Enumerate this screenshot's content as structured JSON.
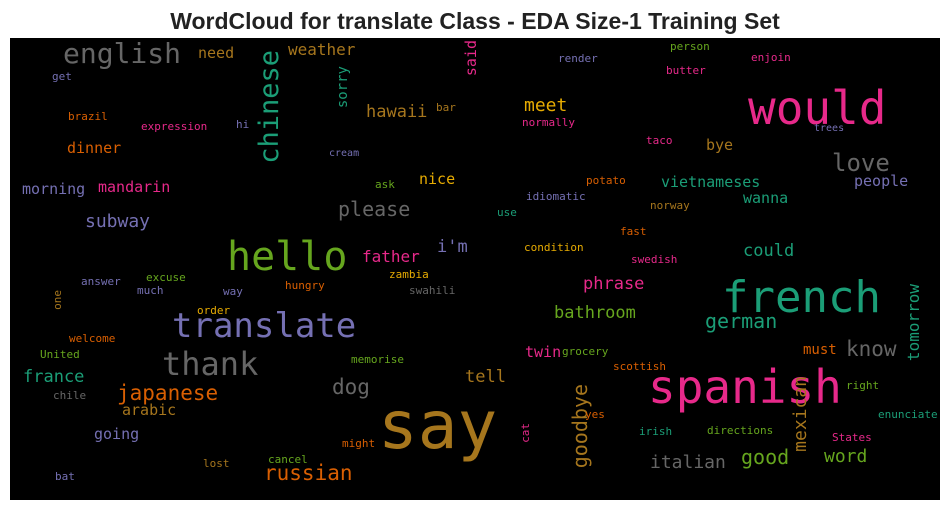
{
  "title": "WordCloud for translate Class - EDA Size-1 Training Set",
  "chart_data": {
    "type": "wordcloud",
    "title": "WordCloud for translate Class - EDA Size-1 Training Set",
    "background": "#000000",
    "colormap": "Dark2",
    "words": [
      {
        "text": "say",
        "color": "#a6761d"
      },
      {
        "text": "spanish",
        "color": "#e7298a"
      },
      {
        "text": "french",
        "color": "#1b9e77"
      },
      {
        "text": "would",
        "color": "#e7298a"
      },
      {
        "text": "hello",
        "color": "#66a61e"
      },
      {
        "text": "translate",
        "color": "#7570b3"
      },
      {
        "text": "thank",
        "color": "#666666"
      },
      {
        "text": "chinese",
        "color": "#1b9e77"
      },
      {
        "text": "english",
        "color": "#666666"
      },
      {
        "text": "russian",
        "color": "#d95f02"
      },
      {
        "text": "japanese",
        "color": "#d95f02"
      },
      {
        "text": "love",
        "color": "#666666"
      },
      {
        "text": "please",
        "color": "#666666"
      },
      {
        "text": "german",
        "color": "#1b9e77"
      },
      {
        "text": "know",
        "color": "#666666"
      },
      {
        "text": "dog",
        "color": "#666666"
      },
      {
        "text": "goodbye",
        "color": "#a6761d"
      },
      {
        "text": "good",
        "color": "#66a61e"
      },
      {
        "text": "italian",
        "color": "#666666"
      },
      {
        "text": "mexican",
        "color": "#a6761d"
      },
      {
        "text": "word",
        "color": "#66a61e"
      },
      {
        "text": "meet",
        "color": "#e6ab02"
      },
      {
        "text": "subway",
        "color": "#7570b3"
      },
      {
        "text": "france",
        "color": "#1b9e77"
      },
      {
        "text": "tomorrow",
        "color": "#1b9e77"
      },
      {
        "text": "hawaii",
        "color": "#a6761d"
      },
      {
        "text": "could",
        "color": "#1b9e77"
      },
      {
        "text": "phrase",
        "color": "#e7298a"
      },
      {
        "text": "bathroom",
        "color": "#66a61e"
      },
      {
        "text": "tell",
        "color": "#a6761d"
      },
      {
        "text": "father",
        "color": "#e7298a"
      },
      {
        "text": "i'm",
        "color": "#7570b3"
      },
      {
        "text": "weather",
        "color": "#a6761d"
      },
      {
        "text": "vietnameses",
        "color": "#1b9e77"
      },
      {
        "text": "wanna",
        "color": "#1b9e77"
      },
      {
        "text": "bye",
        "color": "#a6761d"
      },
      {
        "text": "people",
        "color": "#7570b3"
      },
      {
        "text": "mandarin",
        "color": "#e7298a"
      },
      {
        "text": "morning",
        "color": "#7570b3"
      },
      {
        "text": "dinner",
        "color": "#d95f02"
      },
      {
        "text": "need",
        "color": "#a6761d"
      },
      {
        "text": "going",
        "color": "#7570b3"
      },
      {
        "text": "arabic",
        "color": "#a6761d"
      },
      {
        "text": "nice",
        "color": "#e6ab02"
      },
      {
        "text": "twin",
        "color": "#e7298a"
      },
      {
        "text": "must",
        "color": "#d95f02"
      },
      {
        "text": "said",
        "color": "#e7298a"
      },
      {
        "text": "sorry",
        "color": "#1b9e77"
      },
      {
        "text": "get",
        "color": "#7570b3"
      },
      {
        "text": "brazil",
        "color": "#d95f02"
      },
      {
        "text": "expression",
        "color": "#e7298a"
      },
      {
        "text": "hi",
        "color": "#7570b3"
      },
      {
        "text": "cream",
        "color": "#7570b3"
      },
      {
        "text": "bar",
        "color": "#a6761d"
      },
      {
        "text": "normally",
        "color": "#e7298a"
      },
      {
        "text": "person",
        "color": "#66a61e"
      },
      {
        "text": "render",
        "color": "#7570b3"
      },
      {
        "text": "butter",
        "color": "#e7298a"
      },
      {
        "text": "enjoin",
        "color": "#e7298a"
      },
      {
        "text": "trees",
        "color": "#7570b3"
      },
      {
        "text": "taco",
        "color": "#e7298a"
      },
      {
        "text": "ask",
        "color": "#66a61e"
      },
      {
        "text": "potato",
        "color": "#d95f02"
      },
      {
        "text": "idiomatic",
        "color": "#7570b3"
      },
      {
        "text": "norway",
        "color": "#a6761d"
      },
      {
        "text": "use",
        "color": "#1b9e77"
      },
      {
        "text": "fast",
        "color": "#d95f02"
      },
      {
        "text": "condition",
        "color": "#e6ab02"
      },
      {
        "text": "swedish",
        "color": "#e7298a"
      },
      {
        "text": "zambia",
        "color": "#e6ab02"
      },
      {
        "text": "answer",
        "color": "#7570b3"
      },
      {
        "text": "excuse",
        "color": "#66a61e"
      },
      {
        "text": "much",
        "color": "#7570b3"
      },
      {
        "text": "way",
        "color": "#7570b3"
      },
      {
        "text": "hungry",
        "color": "#d95f02"
      },
      {
        "text": "swahili",
        "color": "#666666"
      },
      {
        "text": "one",
        "color": "#a6761d"
      },
      {
        "text": "order",
        "color": "#e6ab02"
      },
      {
        "text": "welcome",
        "color": "#d95f02"
      },
      {
        "text": "United",
        "color": "#66a61e"
      },
      {
        "text": "memorise",
        "color": "#66a61e"
      },
      {
        "text": "grocery",
        "color": "#66a61e"
      },
      {
        "text": "scottish",
        "color": "#d95f02"
      },
      {
        "text": "chile",
        "color": "#666666"
      },
      {
        "text": "right",
        "color": "#66a61e"
      },
      {
        "text": "enunciate",
        "color": "#1b9e77"
      },
      {
        "text": "yes",
        "color": "#d95f02"
      },
      {
        "text": "irish",
        "color": "#1b9e77"
      },
      {
        "text": "directions",
        "color": "#66a61e"
      },
      {
        "text": "cat",
        "color": "#e7298a"
      },
      {
        "text": "States",
        "color": "#e7298a"
      },
      {
        "text": "might",
        "color": "#d95f02"
      },
      {
        "text": "cancel",
        "color": "#66a61e"
      },
      {
        "text": "lost",
        "color": "#a6761d"
      },
      {
        "text": "bat",
        "color": "#7570b3"
      }
    ]
  }
}
